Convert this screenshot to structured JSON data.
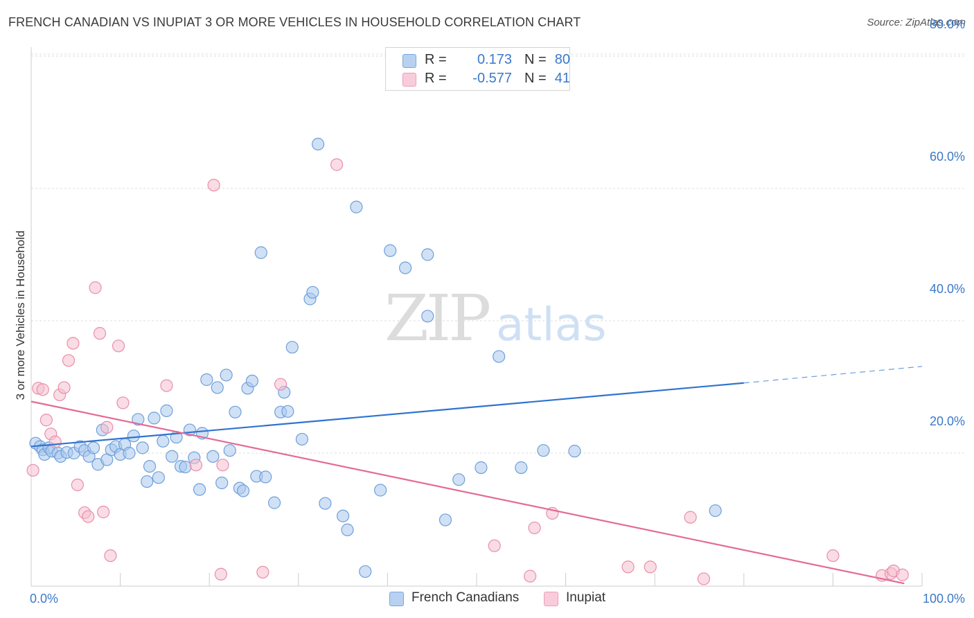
{
  "title": "FRENCH CANADIAN VS INUPIAT 3 OR MORE VEHICLES IN HOUSEHOLD CORRELATION CHART",
  "source": "Source: ZipAtlas.com",
  "watermark": {
    "zip": "ZIP",
    "atlas": "atlas"
  },
  "colors": {
    "blue_fill": "#a9c8ef",
    "blue_stroke": "#6f9fd8",
    "blue_line": "#2f73cf",
    "pink_fill": "#f6bfd0",
    "pink_stroke": "#e88eab",
    "pink_line": "#e46a95",
    "axis_text": "#3a78c9",
    "grid": "#dddddd"
  },
  "legend": {
    "rows": [
      {
        "r_label": "R =",
        "r_value": "0.173",
        "n_label": "N =",
        "n_value": "80"
      },
      {
        "r_label": "R =",
        "r_value": "-0.577",
        "n_label": "N =",
        "n_value": "41"
      }
    ],
    "bottom": [
      "French Canadians",
      "Inupiat"
    ]
  },
  "chart_data": {
    "type": "scatter",
    "title": "FRENCH CANADIAN VS INUPIAT 3 OR MORE VEHICLES IN HOUSEHOLD CORRELATION CHART",
    "xlabel": "",
    "ylabel": "3 or more Vehicles in Household",
    "xlim": [
      0,
      100
    ],
    "ylim": [
      0,
      85
    ],
    "x_tick_labels": [
      "0.0%",
      "100.0%"
    ],
    "y_ticks": [
      20,
      40,
      60,
      80
    ],
    "y_tick_labels": [
      "20.0%",
      "40.0%",
      "60.0%",
      "80.0%"
    ],
    "grid": true,
    "series": [
      {
        "name": "French Canadians",
        "color": "#a9c8ef",
        "trend": {
          "x0": 0,
          "y0": 21.0,
          "x1": 80,
          "y1": 30.6,
          "dash_to_x": 100,
          "dash_to_y": 33.1
        },
        "points": [
          [
            0.5,
            21.5
          ],
          [
            1.0,
            21.0
          ],
          [
            1.3,
            20.5
          ],
          [
            1.5,
            19.8
          ],
          [
            2.0,
            20.8
          ],
          [
            2.3,
            20.3
          ],
          [
            3.0,
            20.0
          ],
          [
            3.3,
            19.5
          ],
          [
            4.0,
            20.1
          ],
          [
            4.8,
            20.0
          ],
          [
            5.5,
            21.0
          ],
          [
            6.0,
            20.4
          ],
          [
            6.5,
            19.5
          ],
          [
            7.0,
            20.8
          ],
          [
            7.5,
            18.3
          ],
          [
            8.0,
            23.5
          ],
          [
            8.5,
            19.0
          ],
          [
            9.0,
            20.5
          ],
          [
            9.5,
            21.0
          ],
          [
            10.0,
            19.8
          ],
          [
            10.5,
            21.3
          ],
          [
            11.0,
            20.0
          ],
          [
            11.5,
            22.6
          ],
          [
            12.0,
            25.1
          ],
          [
            12.5,
            20.8
          ],
          [
            13.0,
            15.7
          ],
          [
            13.3,
            18.0
          ],
          [
            13.8,
            25.3
          ],
          [
            14.3,
            16.3
          ],
          [
            14.8,
            21.8
          ],
          [
            15.2,
            26.4
          ],
          [
            15.8,
            19.5
          ],
          [
            16.3,
            22.4
          ],
          [
            16.8,
            18.0
          ],
          [
            17.3,
            17.9
          ],
          [
            17.8,
            23.5
          ],
          [
            18.3,
            19.3
          ],
          [
            18.9,
            14.5
          ],
          [
            19.2,
            23.0
          ],
          [
            19.7,
            31.1
          ],
          [
            20.4,
            19.5
          ],
          [
            20.9,
            29.9
          ],
          [
            21.4,
            15.5
          ],
          [
            21.9,
            31.8
          ],
          [
            22.3,
            20.4
          ],
          [
            22.9,
            26.2
          ],
          [
            23.4,
            14.7
          ],
          [
            23.8,
            14.3
          ],
          [
            24.3,
            29.8
          ],
          [
            24.8,
            30.9
          ],
          [
            25.3,
            16.5
          ],
          [
            25.8,
            50.3
          ],
          [
            26.3,
            16.4
          ],
          [
            27.3,
            12.5
          ],
          [
            28.0,
            26.2
          ],
          [
            28.4,
            29.2
          ],
          [
            28.8,
            26.3
          ],
          [
            29.3,
            36.0
          ],
          [
            30.4,
            22.1
          ],
          [
            31.3,
            43.3
          ],
          [
            31.6,
            44.3
          ],
          [
            32.2,
            66.7
          ],
          [
            33.0,
            12.4
          ],
          [
            35.0,
            10.5
          ],
          [
            35.5,
            8.4
          ],
          [
            36.5,
            57.2
          ],
          [
            37.5,
            2.1
          ],
          [
            39.2,
            14.4
          ],
          [
            40.3,
            50.6
          ],
          [
            42.0,
            48.0
          ],
          [
            44.5,
            40.7
          ],
          [
            44.5,
            50.0
          ],
          [
            46.5,
            9.9
          ],
          [
            48.0,
            16.0
          ],
          [
            50.5,
            17.8
          ],
          [
            52.5,
            34.6
          ],
          [
            55.0,
            17.8
          ],
          [
            57.5,
            20.4
          ],
          [
            61.0,
            20.3
          ],
          [
            76.8,
            11.3
          ]
        ]
      },
      {
        "name": "Inupiat",
        "color": "#f6bfd0",
        "trend": {
          "x0": 0,
          "y0": 27.8,
          "x1": 98,
          "y1": 0.3
        },
        "points": [
          [
            0.2,
            17.4
          ],
          [
            0.8,
            29.8
          ],
          [
            1.3,
            29.6
          ],
          [
            1.7,
            25.0
          ],
          [
            2.2,
            22.9
          ],
          [
            2.7,
            21.7
          ],
          [
            3.2,
            28.8
          ],
          [
            3.7,
            29.9
          ],
          [
            4.2,
            34.0
          ],
          [
            4.7,
            36.6
          ],
          [
            5.2,
            15.2
          ],
          [
            6.0,
            11.0
          ],
          [
            6.4,
            10.4
          ],
          [
            7.2,
            45.0
          ],
          [
            7.7,
            38.1
          ],
          [
            8.1,
            11.1
          ],
          [
            8.5,
            23.9
          ],
          [
            8.9,
            4.5
          ],
          [
            9.8,
            36.2
          ],
          [
            10.3,
            27.6
          ],
          [
            15.2,
            30.2
          ],
          [
            18.5,
            18.2
          ],
          [
            20.5,
            60.5
          ],
          [
            21.3,
            1.7
          ],
          [
            21.5,
            18.2
          ],
          [
            26.0,
            2.0
          ],
          [
            28.0,
            30.4
          ],
          [
            34.3,
            63.6
          ],
          [
            52.0,
            6.0
          ],
          [
            56.0,
            1.4
          ],
          [
            56.5,
            8.7
          ],
          [
            58.5,
            10.9
          ],
          [
            67.0,
            2.8
          ],
          [
            69.5,
            2.8
          ],
          [
            74.0,
            10.3
          ],
          [
            75.5,
            1.0
          ],
          [
            90.0,
            4.5
          ],
          [
            95.5,
            1.5
          ],
          [
            96.5,
            1.8
          ],
          [
            96.8,
            2.2
          ],
          [
            97.8,
            1.6
          ]
        ]
      }
    ]
  }
}
